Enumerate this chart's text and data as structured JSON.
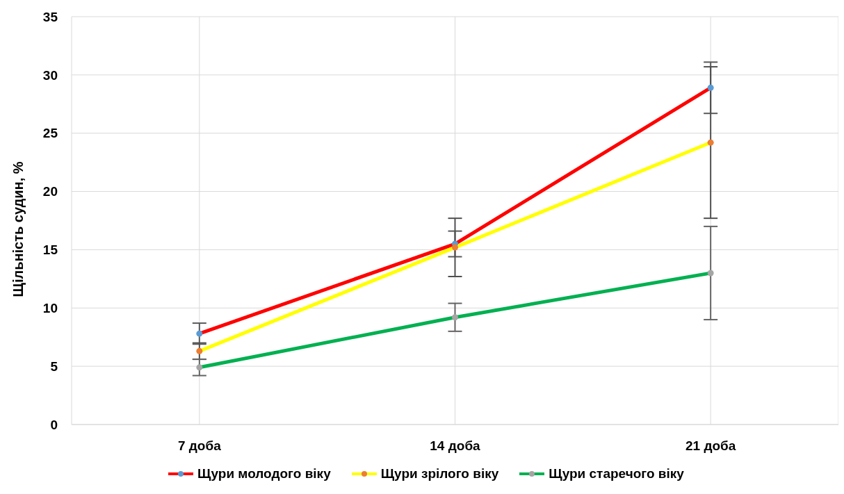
{
  "chart_data": {
    "type": "line",
    "ylabel": "Щільність судин, %",
    "categories": [
      "7 доба",
      "14 доба",
      "21 доба"
    ],
    "series": [
      {
        "name": "Щури молодого віку",
        "color": "#ff0000",
        "colors": [
          "#5b9bd5",
          "#5b9bd5",
          "#5b9bd5"
        ],
        "values": [
          7.8,
          15.5,
          28.9
        ],
        "errors": [
          0.9,
          1.1,
          2.2
        ]
      },
      {
        "name": "Щури зрілого віку",
        "color": "#ffff00",
        "colors": [
          "#ed7d31",
          "#ed7d31",
          "#ed7d31"
        ],
        "values": [
          6.3,
          15.2,
          24.2
        ],
        "errors": [
          0.7,
          2.5,
          6.5
        ]
      },
      {
        "name": "Щури старечого віку",
        "color": "#00b050",
        "colors": [
          "#a5a5a5",
          "#a5a5a5",
          "#a5a5a5"
        ],
        "values": [
          4.9,
          9.2,
          13.0
        ],
        "errors": [
          0.7,
          1.2,
          4.0
        ]
      }
    ],
    "ylim": [
      0,
      35
    ],
    "yticks": [
      0,
      5,
      10,
      15,
      20,
      25,
      30,
      35
    ],
    "grid": true,
    "legend": "bottom",
    "marker": "circle",
    "line_style": "solid"
  }
}
